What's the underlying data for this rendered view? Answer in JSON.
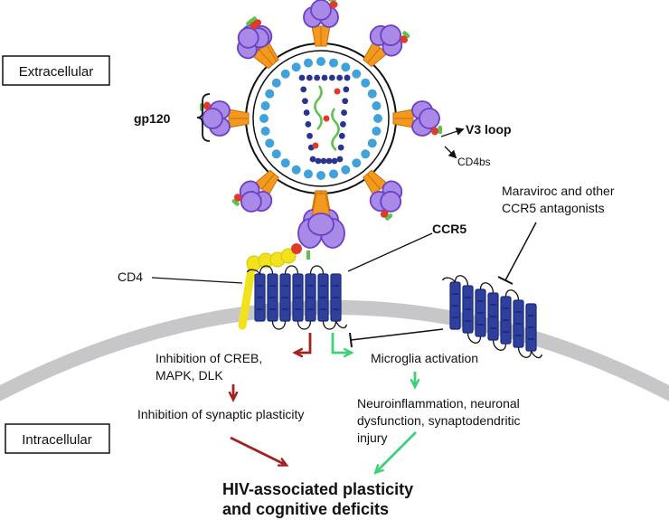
{
  "labels": {
    "extracellular": "Extracellular",
    "intracellular": "Intracellular",
    "gp120": "gp120",
    "v3_loop": "V3 loop",
    "cd4bs": "CD4bs",
    "ccr5": "CCR5",
    "cd4": "CD4",
    "maraviroc_line1": "Maraviroc and other",
    "maraviroc_line2": "CCR5 antagonists",
    "creb_line1": "Inhibition of CREB,",
    "creb_line2": "MAPK, DLK",
    "synaptic": "Inhibition of synaptic plasticity",
    "microglia": "Microglia activation",
    "neuro_line1": "Neuroinflammation, neuronal",
    "neuro_line2": "dysfunction, synaptodendritic",
    "neuro_line3": "injury",
    "outcome_line1": "HIV-associated plasticity",
    "outcome_line2": "and cognitive deficits"
  },
  "colors": {
    "membrane": "#c7c7c9",
    "receptor": "#2e3f9e",
    "receptor_dark": "#1c2a78",
    "gp120_fill": "#a98ae8",
    "gp120_stroke": "#6b40c4",
    "gp41": "#f39a1e",
    "v3_green": "#5bc24a",
    "cd4bs_red": "#e03a2e",
    "capsid_blue": "#3fa2db",
    "core_navy": "#2b3390",
    "cd4_yellow": "#f2e21b",
    "arrow_red": "#a32121",
    "arrow_green": "#3fd07a"
  },
  "icons": {
    "block_arrow": "t-bar-inhibition-icon",
    "activation_arrow": "arrow-icon"
  }
}
